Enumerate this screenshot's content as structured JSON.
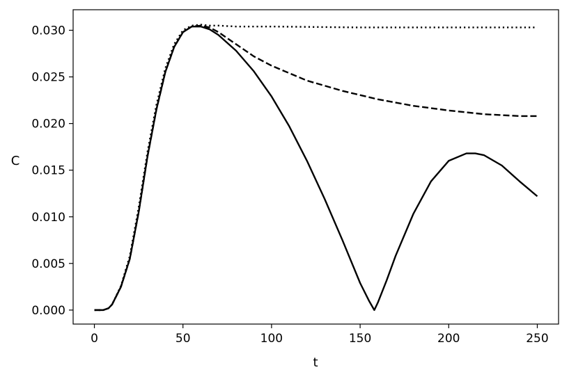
{
  "chart_data": {
    "type": "line",
    "xlabel": "t",
    "ylabel": "C",
    "xlim": [
      -12,
      262
    ],
    "ylim": [
      -0.0015,
      0.0322
    ],
    "x_ticks": [
      0,
      50,
      100,
      150,
      200,
      250
    ],
    "x_tick_labels": [
      "0",
      "50",
      "100",
      "150",
      "200",
      "250"
    ],
    "y_ticks": [
      0.0,
      0.005,
      0.01,
      0.015,
      0.02,
      0.025,
      0.03
    ],
    "y_tick_labels": [
      "0.000",
      "0.005",
      "0.010",
      "0.015",
      "0.020",
      "0.025",
      "0.030"
    ],
    "grid": false,
    "color": "#000000",
    "series": [
      {
        "line_style": "solid",
        "x": [
          0,
          5,
          8,
          10,
          15,
          20,
          25,
          30,
          35,
          40,
          45,
          50,
          55,
          60,
          65,
          70,
          80,
          90,
          100,
          110,
          120,
          130,
          140,
          150,
          155,
          158,
          160,
          165,
          170,
          180,
          190,
          200,
          210,
          215,
          220,
          230,
          240,
          250
        ],
        "y": [
          0.0,
          0.0,
          0.0002,
          0.0006,
          0.0025,
          0.0055,
          0.0105,
          0.0165,
          0.0215,
          0.0255,
          0.0282,
          0.0298,
          0.0304,
          0.0304,
          0.0301,
          0.0295,
          0.0278,
          0.0256,
          0.0229,
          0.0197,
          0.016,
          0.0119,
          0.0075,
          0.0029,
          0.001,
          0.0,
          0.0008,
          0.0032,
          0.0058,
          0.0103,
          0.0138,
          0.016,
          0.0168,
          0.0168,
          0.0166,
          0.0155,
          0.0138,
          0.0122
        ]
      },
      {
        "line_style": "dashed",
        "x": [
          0,
          5,
          8,
          10,
          15,
          20,
          25,
          30,
          35,
          40,
          45,
          50,
          55,
          60,
          65,
          70,
          80,
          90,
          100,
          120,
          140,
          160,
          180,
          200,
          220,
          240,
          250
        ],
        "y": [
          0.0,
          0.0,
          0.0002,
          0.0006,
          0.0025,
          0.0055,
          0.0105,
          0.0165,
          0.0215,
          0.0255,
          0.0282,
          0.0298,
          0.0304,
          0.0305,
          0.0303,
          0.0298,
          0.0285,
          0.0272,
          0.0262,
          0.0246,
          0.0235,
          0.0226,
          0.0219,
          0.0214,
          0.021,
          0.0208,
          0.0208
        ]
      },
      {
        "line_style": "dotted",
        "x": [
          0,
          5,
          8,
          10,
          15,
          20,
          25,
          30,
          35,
          40,
          45,
          50,
          55,
          60,
          65,
          70,
          80,
          100,
          150,
          200,
          250
        ],
        "y": [
          0.0,
          0.0,
          0.0002,
          0.0006,
          0.0026,
          0.0058,
          0.011,
          0.017,
          0.022,
          0.0259,
          0.0285,
          0.03,
          0.0305,
          0.0306,
          0.0305,
          0.0305,
          0.0304,
          0.0304,
          0.0303,
          0.0303,
          0.0303
        ]
      }
    ]
  }
}
